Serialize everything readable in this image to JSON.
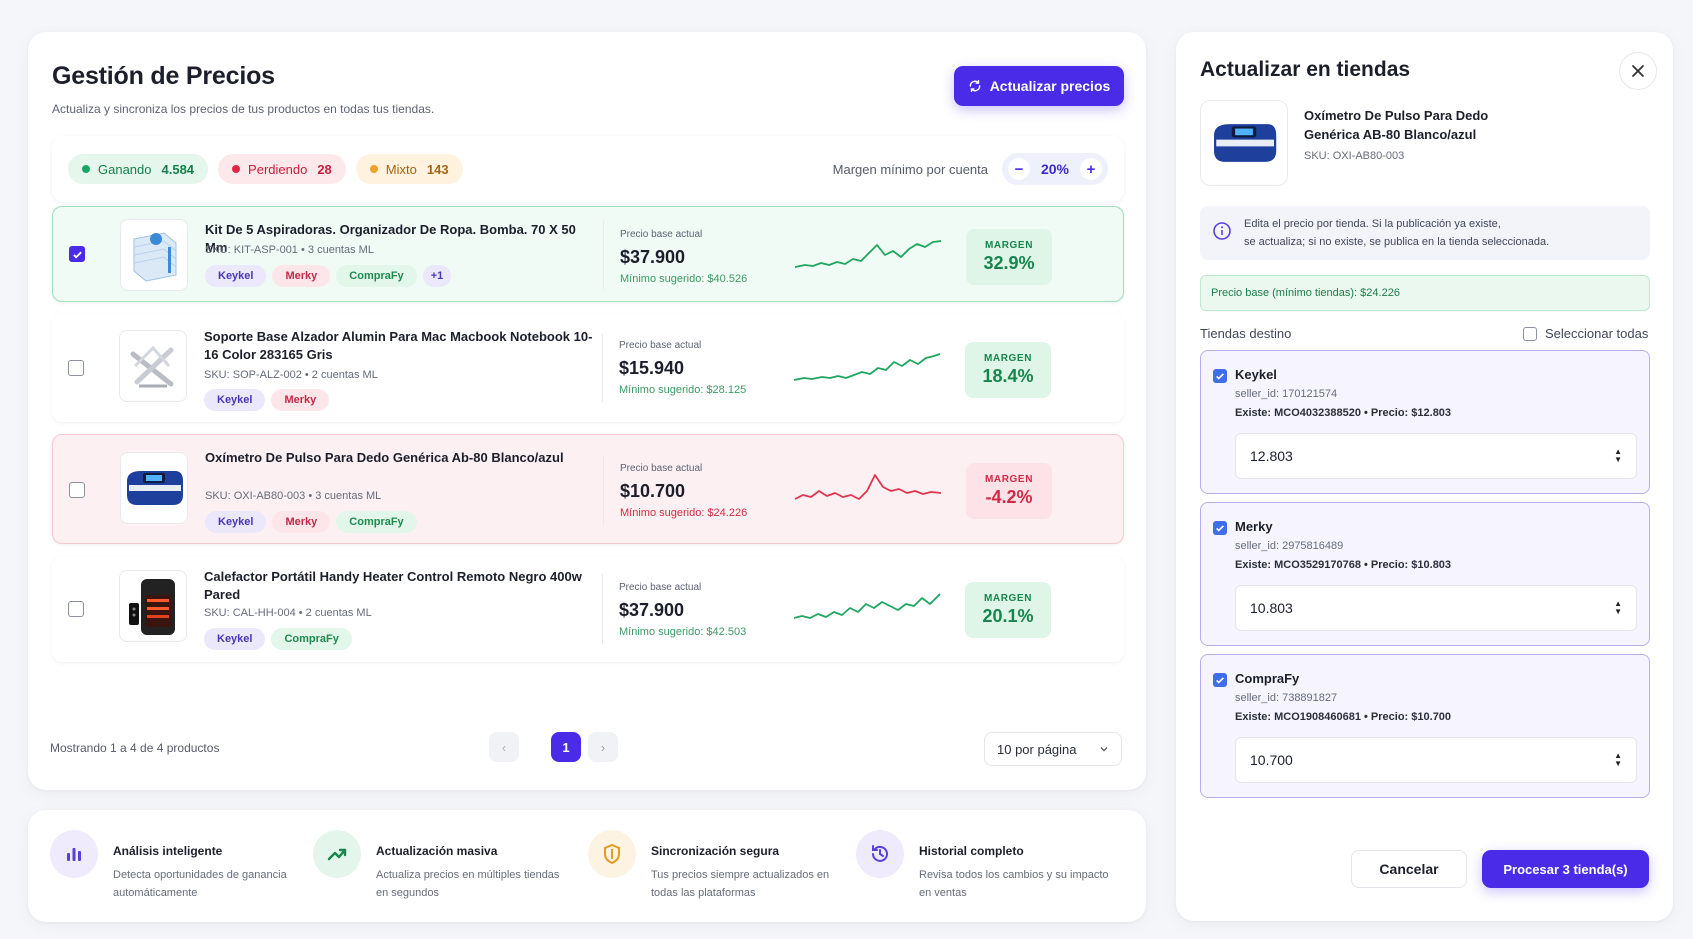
{
  "main": {
    "title": "Gestión de Precios",
    "subtitle": "Actualiza y sincroniza los precios de tus productos en todas tus tiendas.",
    "update_button": "Actualizar precios",
    "status": {
      "win_label": "Ganando",
      "win_count": "4.584",
      "lose_label": "Perdiendo",
      "lose_count": "28",
      "mix_label": "Mixto",
      "mix_count": "143"
    },
    "margin_control": {
      "label": "Margen mínimo por cuenta",
      "value": "20%",
      "minus": "−",
      "plus": "+"
    },
    "price_label": "Precio base actual",
    "margin_label": "MARGEN",
    "products": [
      {
        "name": "Kit De 5 Aspiradoras. Organizador De Ropa. Bomba. 70 X 50 Mm",
        "sku": "SKU: KIT-ASP-001",
        "accounts": "3 cuentas ML",
        "tags": [
          "Keykel",
          "Merky",
          "CompraFy",
          "+1"
        ],
        "price": "$37.900",
        "min_suggested": "Mínimo sugerido: $40.526",
        "margin": "32.9%",
        "selected": true,
        "status": "win"
      },
      {
        "name": "Soporte Base Alzador Alumin Para Mac Macbook Notebook 10-16 Color 283165 Gris",
        "sku": "SKU: SOP-ALZ-002",
        "accounts": "2 cuentas ML",
        "tags": [
          "Keykel",
          "Merky"
        ],
        "price": "$15.940",
        "min_suggested": "Mínimo sugerido: $28.125",
        "margin": "18.4%",
        "selected": false,
        "status": "win"
      },
      {
        "name": "Oxímetro De Pulso Para Dedo Genérica Ab-80 Blanco/azul",
        "sku": "SKU: OXI-AB80-003",
        "accounts": "3 cuentas ML",
        "tags": [
          "Keykel",
          "Merky",
          "CompraFy"
        ],
        "price": "$10.700",
        "min_suggested": "Mínimo sugerido: $24.226",
        "margin": "-4.2%",
        "selected": false,
        "status": "lose"
      },
      {
        "name": "Calefactor Portátil Handy Heater Control Remoto Negro 400w Pared",
        "sku": "SKU: CAL-HH-004",
        "accounts": "2 cuentas ML",
        "tags": [
          "Keykel",
          "CompraFy"
        ],
        "price": "$37.900",
        "min_suggested": "Mínimo sugerido: $42.503",
        "margin": "20.1%",
        "selected": false,
        "status": "win"
      }
    ],
    "pagination": {
      "showing": "Mostrando 1 a 4 de 4 productos",
      "current_page": "1",
      "prev": "‹",
      "next": "›",
      "per_page": "10 por página"
    }
  },
  "features": [
    {
      "icon": "bar-chart-icon",
      "title": "Análisis inteligente",
      "desc": "Detecta oportunidades de ganancia automáticamente",
      "color": "#5b3fd9"
    },
    {
      "icon": "trend-up-icon",
      "title": "Actualización masiva",
      "desc": "Actualiza precios en múltiples tiendas en segundos",
      "color": "#17864c"
    },
    {
      "icon": "shield-icon",
      "title": "Sincronización segura",
      "desc": "Tus precios siempre actualizados en todas las plataformas",
      "color": "#e59a24"
    },
    {
      "icon": "history-icon",
      "title": "Historial completo",
      "desc": "Revisa todos los cambios y su impacto en ventas",
      "color": "#5b3fd9"
    }
  ],
  "side": {
    "title": "Actualizar en tiendas",
    "product_name": "Oxímetro De Pulso Para Dedo Genérica AB-80 Blanco/azul",
    "product_sku": "SKU: OXI-AB80-003",
    "info_line1": "Edita el precio por tienda. Si la publicación ya existe,",
    "info_line2": "se actualiza; si no existe, se publica en la tienda seleccionada.",
    "base_price": "Precio base (mínimo tiendas): $24.226",
    "dest_label": "Tiendas destino",
    "select_all": "Seleccionar todas",
    "stores": [
      {
        "name": "Keykel",
        "seller_id": "seller_id: 170121574",
        "exists": "Existe: MCO4032388520 • Precio: $12.803",
        "value": "12.803"
      },
      {
        "name": "Merky",
        "seller_id": "seller_id: 2975816489",
        "exists": "Existe: MCO3529170768 • Precio: $10.803",
        "value": "10.803"
      },
      {
        "name": "CompraFy",
        "seller_id": "seller_id: 738891827",
        "exists": "Existe: MCO1908460681 • Precio: $10.700",
        "value": "10.700"
      }
    ],
    "cancel": "Cancelar",
    "process": "Procesar 3 tienda(s)"
  },
  "colors": {
    "accent": "#4a2be8",
    "win": "#17864c",
    "lose": "#d12a46",
    "mix": "#f2a02a"
  }
}
